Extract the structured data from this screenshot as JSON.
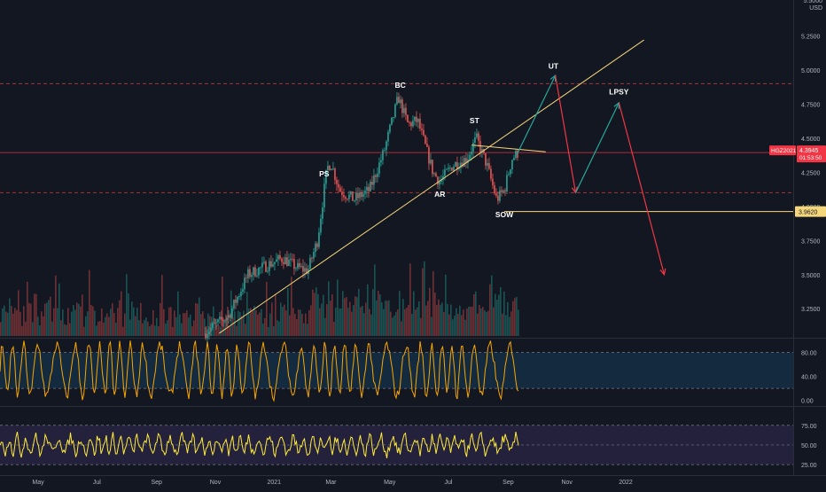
{
  "chart_data": {
    "type": "candlestick",
    "symbol_badge": "HGZ2021",
    "price_axis": {
      "currency": "USD",
      "ticks": [
        "5.5000",
        "5.2500",
        "5.0000",
        "4.7500",
        "4.5000",
        "4.2500",
        "4.0000",
        "3.7500",
        "3.5000",
        "3.2500"
      ],
      "tick_values": [
        5.5,
        5.25,
        5.0,
        4.75,
        4.5,
        4.25,
        4.0,
        3.75,
        3.5,
        3.25
      ],
      "range": [
        3.05,
        5.5
      ]
    },
    "last_price": {
      "value": "4.3945",
      "countdown": "01:53:50",
      "color": "#f23645"
    },
    "marked_level": {
      "value": "3.9620",
      "color": "#f5d67a"
    },
    "time_axis": {
      "labels": [
        "May",
        "Jul",
        "Sep",
        "Nov",
        "2021",
        "Mar",
        "May",
        "Jul",
        "Sep",
        "Nov",
        "2022"
      ],
      "dates": [
        "2020-05-01",
        "2020-07-01",
        "2020-09-01",
        "2020-11-01",
        "2021-01-01",
        "2021-03-01",
        "2021-05-01",
        "2021-07-01",
        "2021-09-01",
        "2021-11-01",
        "2022-01-01"
      ]
    },
    "series": [
      {
        "name": "price",
        "key_points": [
          {
            "x": "2020-10-20",
            "y": 3.07
          },
          {
            "x": "2020-11-15",
            "y": 3.2
          },
          {
            "x": "2020-12-05",
            "y": 3.5
          },
          {
            "x": "2020-12-25",
            "y": 3.57
          },
          {
            "x": "2021-01-10",
            "y": 3.62
          },
          {
            "x": "2021-01-25",
            "y": 3.55
          },
          {
            "x": "2021-02-05",
            "y": 3.53
          },
          {
            "x": "2021-02-15",
            "y": 3.75
          },
          {
            "x": "2021-02-25",
            "y": 4.28
          },
          {
            "x": "2021-03-01",
            "y": 4.32
          },
          {
            "x": "2021-03-10",
            "y": 4.12
          },
          {
            "x": "2021-03-25",
            "y": 4.05
          },
          {
            "x": "2021-04-10",
            "y": 4.12
          },
          {
            "x": "2021-04-25",
            "y": 4.4
          },
          {
            "x": "2021-05-10",
            "y": 4.8
          },
          {
            "x": "2021-05-20",
            "y": 4.6
          },
          {
            "x": "2021-05-30",
            "y": 4.63
          },
          {
            "x": "2021-06-15",
            "y": 4.25
          },
          {
            "x": "2021-06-22",
            "y": 4.18
          },
          {
            "x": "2021-07-05",
            "y": 4.3
          },
          {
            "x": "2021-07-20",
            "y": 4.35
          },
          {
            "x": "2021-07-30",
            "y": 4.5
          },
          {
            "x": "2021-08-10",
            "y": 4.3
          },
          {
            "x": "2021-08-20",
            "y": 4.05
          },
          {
            "x": "2021-08-28",
            "y": 4.12
          },
          {
            "x": "2021-09-05",
            "y": 4.35
          },
          {
            "x": "2021-09-12",
            "y": 4.4
          }
        ]
      }
    ],
    "horizontal_lines": [
      {
        "y": 4.9,
        "style": "dashed",
        "color": "#b23a3a"
      },
      {
        "y": 4.3945,
        "style": "solid",
        "color": "#f23645"
      },
      {
        "y": 4.1,
        "style": "dashed",
        "color": "#b23a3a"
      }
    ],
    "trendline": {
      "from": {
        "x": "2020-11-05",
        "y": 3.07
      },
      "to": {
        "x": "2022-01-20",
        "y": 5.22
      },
      "color": "#f5d67a"
    },
    "neckline": {
      "from": {
        "x": "2021-07-25",
        "y": 4.45
      },
      "to": {
        "x": "2021-10-10",
        "y": 4.4
      },
      "color": "#f5d67a"
    },
    "projection": [
      {
        "from": {
          "x": "2021-09-10",
          "y": 4.38
        },
        "to": {
          "x": "2021-10-20",
          "y": 4.96
        },
        "color": "#26a69a"
      },
      {
        "from": {
          "x": "2021-10-20",
          "y": 4.96
        },
        "to": {
          "x": "2021-11-10",
          "y": 4.1
        },
        "color": "#f23645"
      },
      {
        "from": {
          "x": "2021-11-10",
          "y": 4.1
        },
        "to": {
          "x": "2021-12-25",
          "y": 4.76
        },
        "color": "#26a69a"
      },
      {
        "from": {
          "x": "2021-12-25",
          "y": 4.76
        },
        "to": {
          "x": "2022-02-10",
          "y": 3.5
        },
        "color": "#f23645"
      }
    ],
    "annotations": [
      {
        "text": "PS",
        "x": "2021-02-22",
        "y": 4.22
      },
      {
        "text": "BC",
        "x": "2021-05-12",
        "y": 4.87
      },
      {
        "text": "AR",
        "x": "2021-06-22",
        "y": 4.07
      },
      {
        "text": "ST",
        "x": "2021-07-28",
        "y": 4.61
      },
      {
        "text": "SOW",
        "x": "2021-08-28",
        "y": 3.92
      },
      {
        "text": "UT",
        "x": "2021-10-18",
        "y": 5.01
      },
      {
        "text": "LPSY",
        "x": "2021-12-25",
        "y": 4.82
      }
    ],
    "oscillator_1": {
      "ticks": [
        "80.00",
        "40.00",
        "0.00"
      ],
      "tick_values": [
        80,
        40,
        0
      ],
      "range": [
        -5,
        100
      ],
      "band": [
        20,
        80
      ],
      "color": "#f7a600"
    },
    "oscillator_2": {
      "ticks": [
        "75.00",
        "50.00",
        "25.00"
      ],
      "tick_values": [
        75,
        50,
        25
      ],
      "range": [
        15,
        95
      ],
      "band": [
        25,
        75
      ],
      "color": "#ffeb3b"
    },
    "grid": false
  }
}
